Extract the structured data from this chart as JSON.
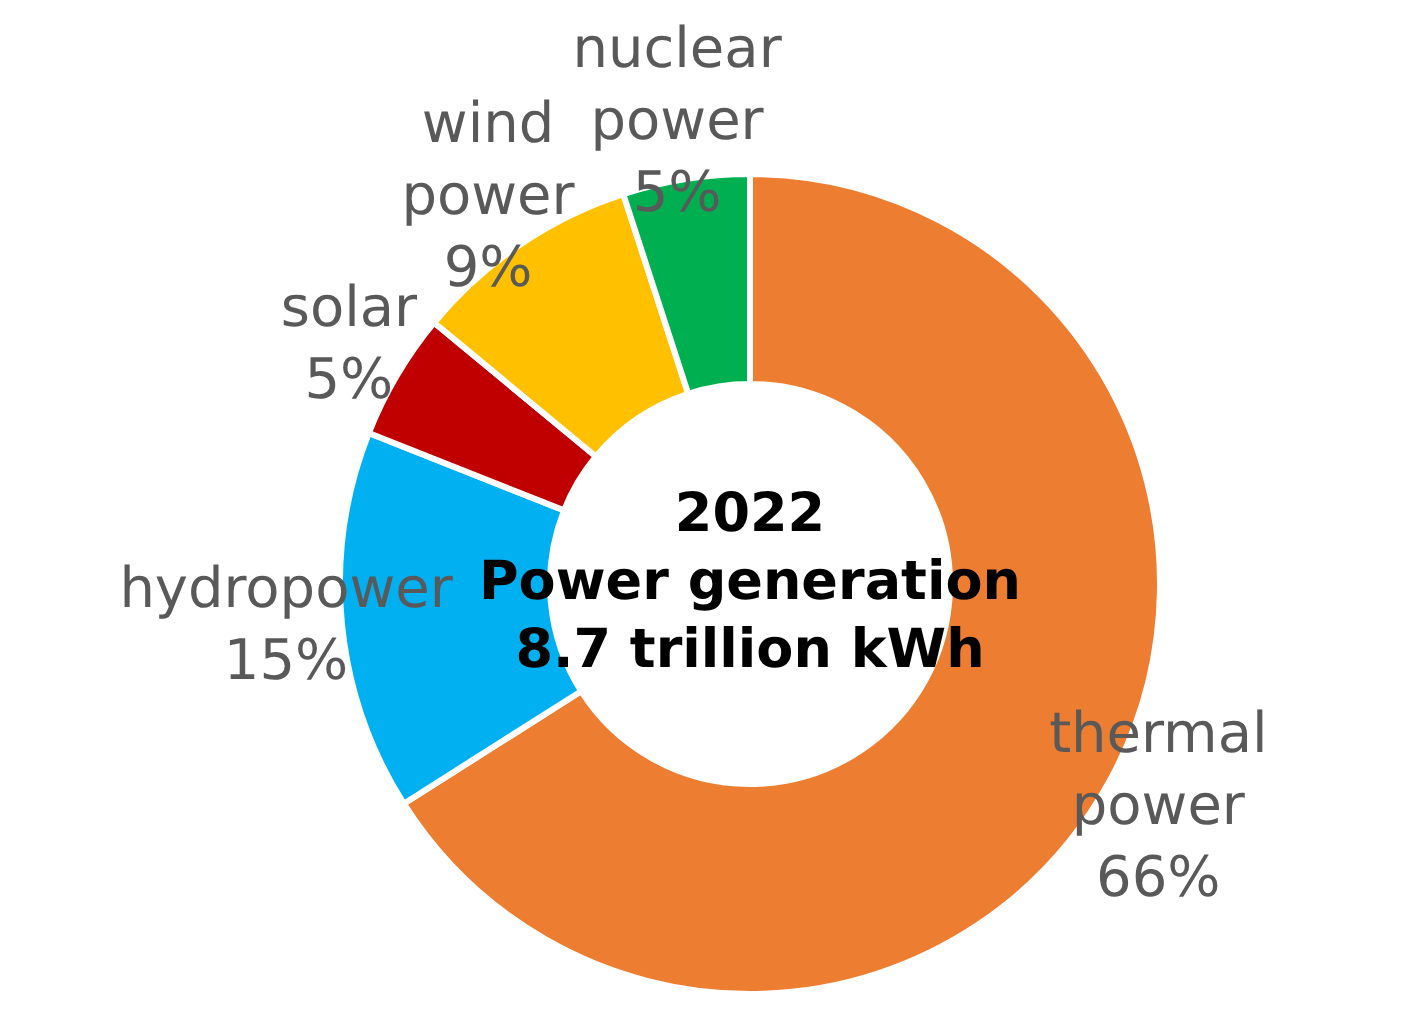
{
  "chart_data": {
    "type": "donut",
    "categories": [
      "thermal power",
      "hydropower",
      "solar",
      "wind power",
      "nuclear power"
    ],
    "values": [
      66,
      15,
      5,
      9,
      5
    ],
    "colors": [
      "#ed7d31",
      "#00b0f0",
      "#c00000",
      "#ffc000",
      "#00b050"
    ],
    "value_labels": [
      "66%",
      "15%",
      "5%",
      "9%",
      "5%"
    ],
    "annotations": [
      "2022",
      "Power generation",
      "8.7 trillion kWh"
    ]
  }
}
